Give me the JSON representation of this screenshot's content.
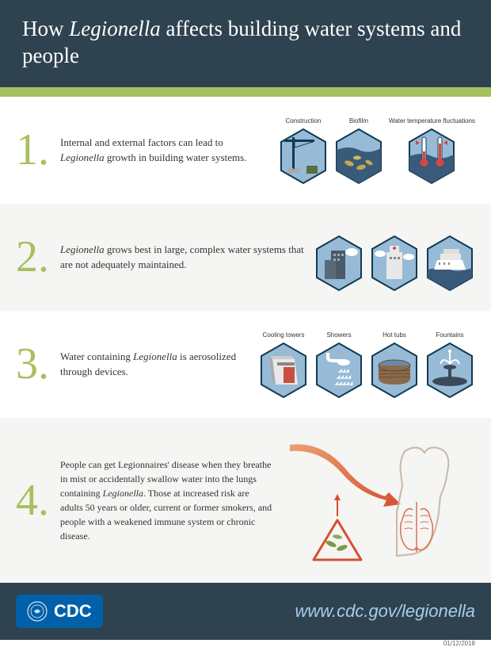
{
  "header": {
    "title_html": "How <em>Legionella</em> affects building water systems and people",
    "bg_color": "#2f4250",
    "bar_color": "#a7c05f"
  },
  "sections": [
    {
      "number": "1.",
      "text_html": "Internal and external factors can lead to <em>Legionella</em> growth in building water systems.",
      "icons": [
        {
          "label": "Construction",
          "name": "construction-icon"
        },
        {
          "label": "Biofilm",
          "name": "biofilm-icon"
        },
        {
          "label": "Water temperature fluctuations",
          "name": "thermometer-icon"
        }
      ],
      "alt": false
    },
    {
      "number": "2.",
      "text_html": "<em>Legionella</em> grows best in large, complex water systems that are not adequately maintained.",
      "icons": [
        {
          "label": "",
          "name": "buildings-icon"
        },
        {
          "label": "",
          "name": "hospital-icon"
        },
        {
          "label": "",
          "name": "ship-icon"
        }
      ],
      "alt": true
    },
    {
      "number": "3.",
      "text_html": "Water containing <em>Legionella</em> is aerosolized through devices.",
      "icons": [
        {
          "label": "Cooling towers",
          "name": "cooling-tower-icon"
        },
        {
          "label": "Showers",
          "name": "shower-icon"
        },
        {
          "label": "Hot tubs",
          "name": "hot-tub-icon"
        },
        {
          "label": "Fountains",
          "name": "fountain-icon"
        }
      ],
      "alt": false
    },
    {
      "number": "4.",
      "text_html": "People can get Legionnaires' disease when they breathe in mist or accidentally swallow water into the lungs containing <em>Legionella</em>. Those at increased risk are adults 50 years or older, current or former smokers, and people with a weakened immune system or chronic disease.",
      "icons": [],
      "alt": true
    }
  ],
  "footer": {
    "logo_text": "CDC",
    "url": "www.cdc.gov/legionella",
    "date": "01/12/2018"
  },
  "colors": {
    "accent_green": "#a7c05f",
    "dark_blue": "#2f4250",
    "icon_bg": "#97bbd7",
    "icon_border": "#113a53",
    "orange": "#e8663e"
  }
}
